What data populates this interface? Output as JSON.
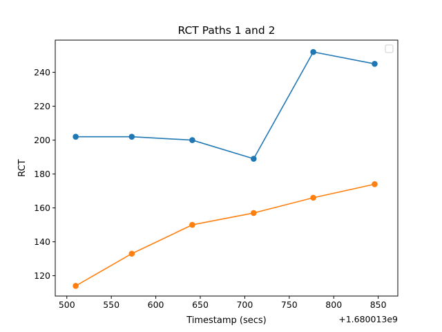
{
  "chart_data": {
    "type": "line",
    "title": "RCT Paths 1 and 2",
    "xlabel": "Timestamp (secs)",
    "ylabel": "RCT",
    "x_offset_label": "+1.680013e9",
    "x_offset": 1680013000,
    "xlim": [
      487,
      872
    ],
    "ylim": [
      108,
      259
    ],
    "x_ticks": [
      500,
      550,
      600,
      650,
      700,
      750,
      800,
      850
    ],
    "y_ticks": [
      120,
      140,
      160,
      180,
      200,
      220,
      240
    ],
    "legend": {
      "placement": "top-right",
      "entries": []
    },
    "grid": false,
    "x": [
      510,
      573,
      641,
      710,
      777,
      846
    ],
    "series": [
      {
        "color": "#1f77b4",
        "marker": "circle",
        "values": [
          202,
          202,
          200,
          189,
          252,
          245
        ]
      },
      {
        "color": "#ff7f0e",
        "marker": "circle",
        "values": [
          114,
          133,
          150,
          157,
          166,
          174
        ]
      }
    ]
  }
}
